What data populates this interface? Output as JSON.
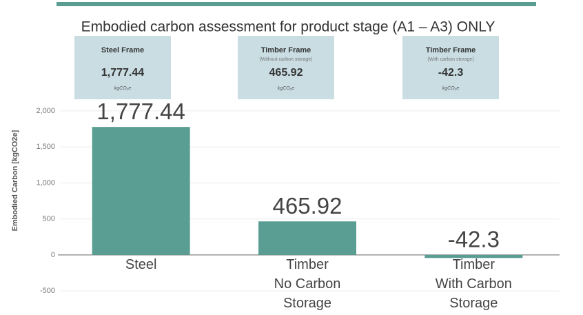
{
  "chart_data": {
    "type": "bar",
    "title": "Embodied carbon assessment for product stage (A1 – A3) ONLY",
    "y_label": "Embodied Carbon [kgCO2e]",
    "categories": [
      "Steel",
      "Timber No Carbon Storage",
      "Timber With Carbon Storage"
    ],
    "values": [
      1777.44,
      465.92,
      -42.3
    ],
    "value_labels": [
      "1,777.44",
      "465.92",
      "-42.3"
    ],
    "color": "#5a9e93",
    "ylim": [
      -700,
      2200
    ],
    "yticks": [
      -500,
      0,
      500,
      {
        "value": 1000,
        "label": "1,000"
      },
      {
        "value": 1500,
        "label": "1,500"
      },
      {
        "value": 2000,
        "label": "2,000"
      }
    ],
    "grid": true,
    "cards": [
      {
        "title": "Steel Frame",
        "value": "1,777.44",
        "unit": "kgCO₂e"
      },
      {
        "title": "Timber Frame",
        "subtitle": "(Without carbon storage)",
        "value": "465.92",
        "unit": "kgCO₂e"
      },
      {
        "title": "Timber Frame",
        "subtitle": "(With carbon storage)",
        "value": "-42.3",
        "unit": "kgCO₂e"
      }
    ]
  }
}
